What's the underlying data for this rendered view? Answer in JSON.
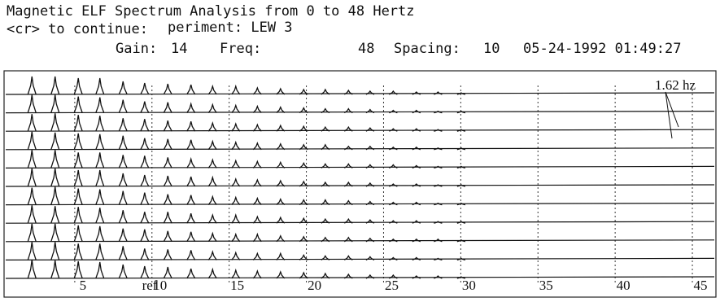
{
  "chart_data": {
    "type": "waterfall",
    "title": "Magnetic ELF Spectrum Analysis from 0 to  48  Hertz",
    "prompt": "<cr> to continue:",
    "experiment": "periment: LEW 3",
    "gain_label": "Gain:",
    "gain": 14,
    "freq_label": "Freq:",
    "freq": 48,
    "spacing_label": "Spacing:",
    "spacing": 10,
    "timestamp": "05-24-1992 01:49:27",
    "annotation": "1.62 hz",
    "ref_label": "ref",
    "xlim": [
      0,
      46
    ],
    "xticks": [
      5,
      10,
      15,
      20,
      25,
      30,
      35,
      40,
      45
    ],
    "peak_x": [
      1.7,
      3.2,
      4.7,
      6.1,
      7.6,
      9.0,
      10.5,
      12.0,
      13.4,
      14.9,
      16.3,
      17.8,
      19.3,
      20.7,
      22.2,
      23.6,
      25.1,
      26.6,
      28.0,
      29.5
    ],
    "color": "#111111",
    "series": [
      {
        "values": [
          22,
          22,
          20,
          20,
          16,
          14,
          13,
          12,
          10,
          10,
          8,
          7,
          6,
          6,
          5,
          4,
          4,
          3,
          3,
          2
        ]
      },
      {
        "values": [
          22,
          22,
          20,
          19,
          16,
          14,
          13,
          11,
          10,
          9,
          8,
          7,
          6,
          5,
          5,
          4,
          3,
          3,
          2,
          2
        ]
      },
      {
        "values": [
          21,
          22,
          20,
          19,
          16,
          15,
          13,
          12,
          10,
          9,
          8,
          7,
          6,
          5,
          5,
          4,
          3,
          3,
          2,
          2
        ]
      },
      {
        "values": [
          22,
          21,
          20,
          19,
          17,
          14,
          13,
          12,
          10,
          9,
          8,
          7,
          6,
          6,
          4,
          4,
          3,
          3,
          2,
          2
        ]
      },
      {
        "values": [
          22,
          22,
          19,
          19,
          16,
          15,
          13,
          11,
          10,
          9,
          8,
          7,
          6,
          5,
          5,
          4,
          4,
          3,
          2,
          2
        ]
      },
      {
        "values": [
          22,
          22,
          20,
          20,
          16,
          14,
          13,
          12,
          11,
          9,
          8,
          7,
          6,
          5,
          5,
          4,
          3,
          3,
          2,
          2
        ]
      },
      {
        "values": [
          21,
          22,
          20,
          19,
          17,
          15,
          13,
          12,
          10,
          9,
          8,
          7,
          6,
          6,
          5,
          4,
          3,
          3,
          2,
          2
        ]
      },
      {
        "values": [
          22,
          21,
          20,
          19,
          16,
          14,
          14,
          12,
          10,
          10,
          8,
          7,
          6,
          5,
          5,
          4,
          3,
          3,
          2,
          2
        ]
      },
      {
        "values": [
          22,
          22,
          20,
          19,
          16,
          15,
          13,
          12,
          10,
          9,
          9,
          7,
          6,
          5,
          5,
          4,
          3,
          3,
          3,
          2
        ]
      },
      {
        "values": [
          22,
          22,
          20,
          20,
          17,
          14,
          13,
          12,
          10,
          9,
          8,
          8,
          6,
          5,
          5,
          4,
          3,
          3,
          2,
          2
        ]
      },
      {
        "values": [
          23,
          22,
          21,
          20,
          17,
          15,
          14,
          12,
          11,
          10,
          9,
          8,
          7,
          6,
          5,
          4,
          4,
          3,
          3,
          2
        ]
      }
    ]
  }
}
